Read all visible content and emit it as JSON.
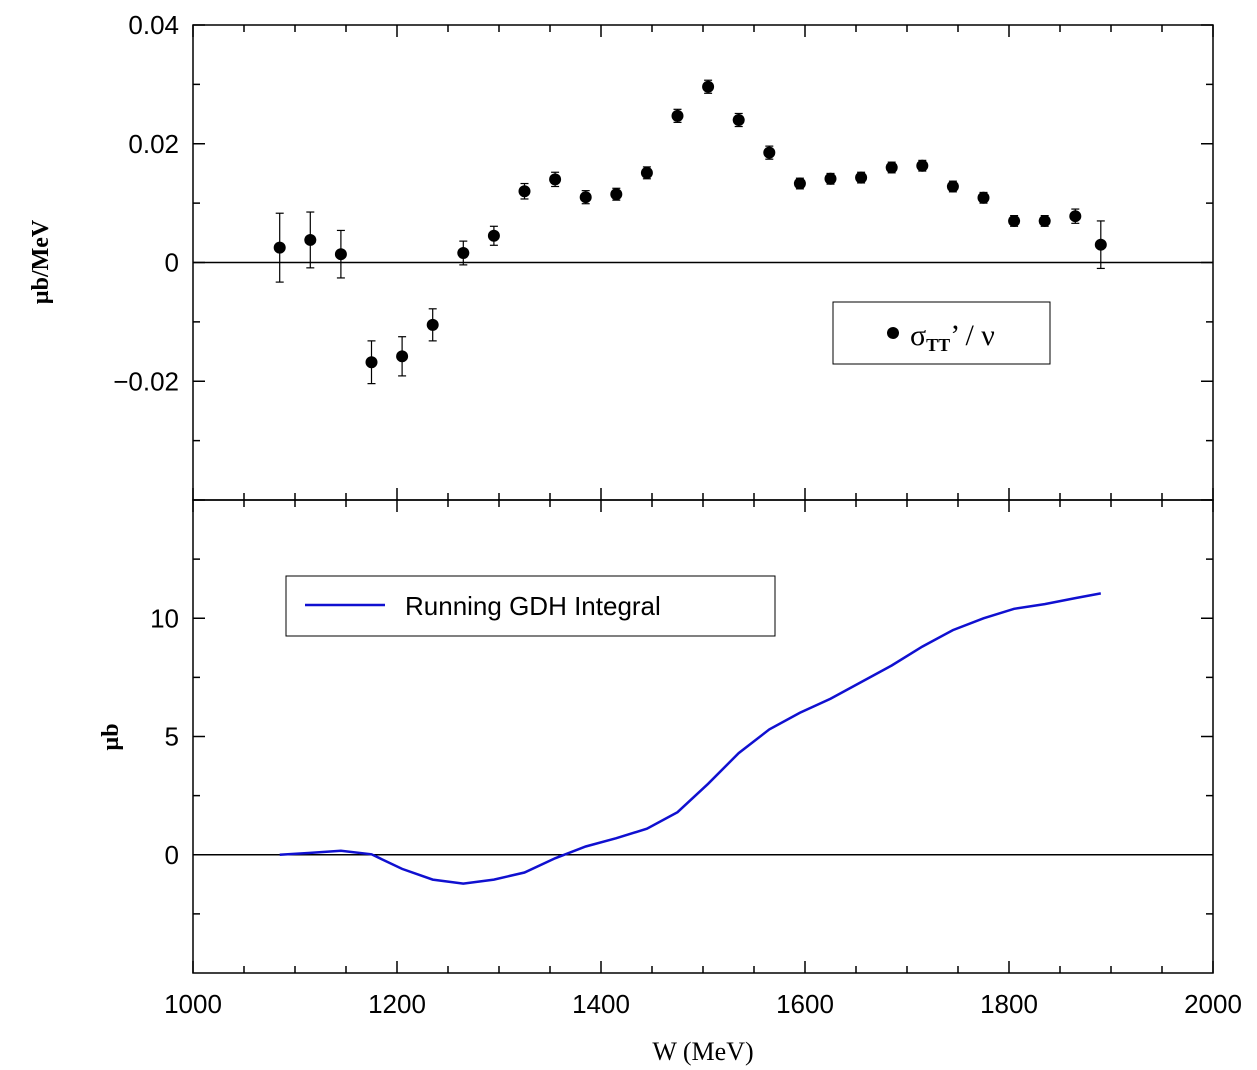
{
  "chart_data": [
    {
      "type": "scatter",
      "panel": "top",
      "ylabel": "µb/MeV",
      "xlim": [
        1000,
        2000
      ],
      "ylim": [
        -0.04,
        0.04
      ],
      "y_ticks": [
        -0.02,
        0,
        0.02,
        0.04
      ],
      "y_tick_labels": [
        "−0.02",
        "0",
        "0.02",
        "0.04"
      ],
      "zero_line": true,
      "legend": {
        "position": "right-middle",
        "symbol": "σ",
        "subscript": "TT",
        "suffix": "’ / ν"
      },
      "series": [
        {
          "name": "σTT’ / ν",
          "marker": "filled-circle",
          "color": "#000000",
          "x": [
            1085,
            1115,
            1145,
            1175,
            1205,
            1235,
            1265,
            1295,
            1325,
            1355,
            1385,
            1415,
            1445,
            1475,
            1505,
            1535,
            1565,
            1595,
            1625,
            1655,
            1685,
            1715,
            1745,
            1775,
            1805,
            1835,
            1865,
            1890
          ],
          "y": [
            0.0025,
            0.0038,
            0.0014,
            -0.0168,
            -0.0158,
            -0.0105,
            0.0016,
            0.0045,
            0.012,
            0.014,
            0.011,
            0.0115,
            0.0151,
            0.0247,
            0.0296,
            0.024,
            0.0185,
            0.0133,
            0.0141,
            0.0143,
            0.016,
            0.0163,
            0.0128,
            0.0109,
            0.007,
            0.007,
            0.0078,
            0.003
          ],
          "yerr": [
            0.0058,
            0.0047,
            0.004,
            0.0036,
            0.0033,
            0.0027,
            0.002,
            0.0016,
            0.0013,
            0.0012,
            0.0011,
            0.001,
            0.001,
            0.0011,
            0.0011,
            0.0011,
            0.0011,
            0.0009,
            0.0009,
            0.0009,
            0.0009,
            0.0009,
            0.0009,
            0.0009,
            0.0009,
            0.0009,
            0.0012,
            0.004
          ]
        }
      ]
    },
    {
      "type": "line",
      "panel": "bottom",
      "xlabel": "W (MeV)",
      "ylabel": "µb",
      "xlim": [
        1000,
        2000
      ],
      "ylim": [
        -5,
        15
      ],
      "y_ticks": [
        0,
        5,
        10
      ],
      "y_tick_labels": [
        "0",
        "5",
        "10"
      ],
      "x_ticks": [
        1000,
        1200,
        1400,
        1600,
        1800,
        2000
      ],
      "x_tick_labels": [
        "1000",
        "1200",
        "1400",
        "1600",
        "1800",
        "2000"
      ],
      "zero_line": true,
      "legend": {
        "position": "top-left"
      },
      "series": [
        {
          "name": "Running GDH Integral",
          "color": "#1010d0",
          "x": [
            1085,
            1115,
            1145,
            1175,
            1205,
            1235,
            1265,
            1295,
            1325,
            1355,
            1385,
            1415,
            1445,
            1475,
            1505,
            1535,
            1565,
            1595,
            1625,
            1655,
            1685,
            1715,
            1745,
            1775,
            1805,
            1835,
            1865,
            1890
          ],
          "y": [
            0.0,
            0.08,
            0.17,
            0.02,
            -0.6,
            -1.05,
            -1.22,
            -1.05,
            -0.75,
            -0.15,
            0.35,
            0.7,
            1.1,
            1.8,
            3.0,
            4.3,
            5.3,
            6.0,
            6.6,
            7.3,
            8.0,
            8.8,
            9.5,
            10.0,
            10.4,
            10.6,
            10.85,
            11.05
          ]
        }
      ]
    }
  ]
}
